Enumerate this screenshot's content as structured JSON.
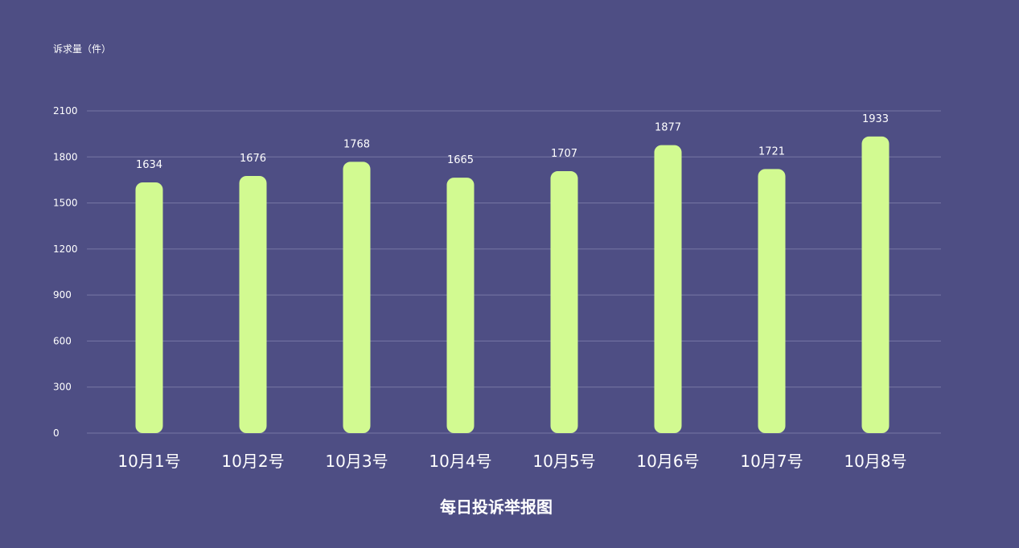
{
  "chart_data": {
    "type": "bar",
    "title": "每日投诉举报图",
    "ylabel": "诉求量（件）",
    "xlabel": "",
    "categories": [
      "10月1号",
      "10月2号",
      "10月3号",
      "10月4号",
      "10月5号",
      "10月6号",
      "10月7号",
      "10月8号"
    ],
    "values": [
      1634,
      1676,
      1768,
      1665,
      1707,
      1877,
      1721,
      1933
    ],
    "yticks": [
      0,
      300,
      600,
      900,
      1200,
      1500,
      1800,
      2100
    ],
    "ylim": [
      0,
      2100
    ],
    "grid": true,
    "bar_color": "#d2fa91",
    "background_color": "#4e4e84",
    "grid_color": "#8585b0",
    "text_color": "#ffffff"
  }
}
